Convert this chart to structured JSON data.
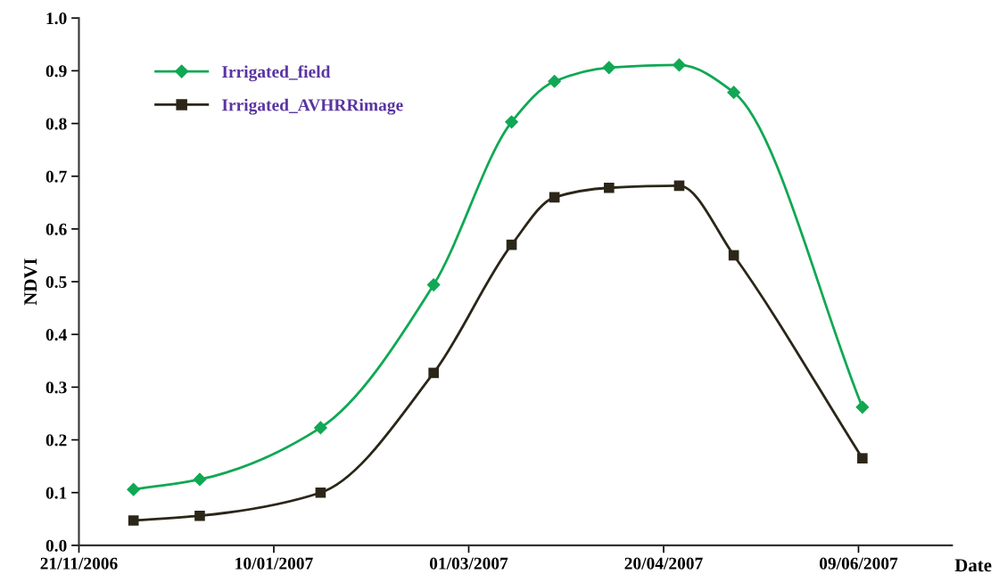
{
  "chart_data": {
    "type": "line",
    "xlabel": "Date",
    "ylabel": "NDVI",
    "x": [
      "2006-12-05",
      "2006-12-22",
      "2007-01-22",
      "2007-02-20",
      "2007-03-12",
      "2007-03-23",
      "2007-04-06",
      "2007-04-24",
      "2007-05-08",
      "2007-06-10"
    ],
    "series": [
      {
        "name": "Irrigated_field",
        "color": "#10a854",
        "marker": "diamond",
        "values": [
          0.106,
          0.125,
          0.223,
          0.494,
          0.803,
          0.88,
          0.906,
          0.911,
          0.859,
          0.262
        ]
      },
      {
        "name": "Irrigated_AVHRRimage",
        "color": "#2b2618",
        "marker": "square",
        "values": [
          0.047,
          0.056,
          0.1,
          0.327,
          0.57,
          0.66,
          0.678,
          0.682,
          0.55,
          0.165
        ]
      }
    ],
    "xlim": [
      "2006-11-21",
      "2007-07-03"
    ],
    "xticks": [
      {
        "value": "2006-11-21",
        "label": "21/11/2006"
      },
      {
        "value": "2007-01-10",
        "label": "10/01/2007"
      },
      {
        "value": "2007-03-01",
        "label": "01/03/2007"
      },
      {
        "value": "2007-04-20",
        "label": "20/04/2007"
      },
      {
        "value": "2007-06-09",
        "label": "09/06/2007"
      }
    ],
    "ylim": [
      0,
      1.0
    ],
    "yticks": [
      {
        "value": 0,
        "label": "0.0"
      },
      {
        "value": 0.1,
        "label": "0.1"
      },
      {
        "value": 0.2,
        "label": "0.2"
      },
      {
        "value": 0.3,
        "label": "0.3"
      },
      {
        "value": 0.4,
        "label": "0.4"
      },
      {
        "value": 0.5,
        "label": "0.5"
      },
      {
        "value": 0.6,
        "label": "0.6"
      },
      {
        "value": 0.7,
        "label": "0.7"
      },
      {
        "value": 0.8,
        "label": "0.8"
      },
      {
        "value": 0.9,
        "label": "0.9"
      },
      {
        "value": 1.0,
        "label": "1.0"
      }
    ],
    "grid": false,
    "legend": "top left",
    "line_style": "solid"
  }
}
